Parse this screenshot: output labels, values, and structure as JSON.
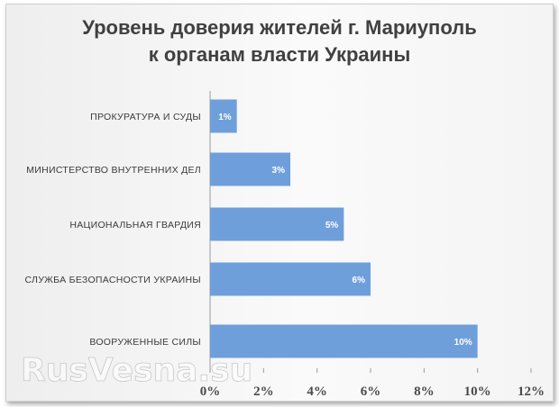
{
  "chart_data": {
    "type": "bar",
    "orientation": "horizontal",
    "title": [
      "Уровень доверия жителей г. Мариуполь",
      "к органам власти Украины"
    ],
    "categories": [
      "ПРОКУРАТУРА И СУДЫ",
      "МИНИСТЕРСТВО ВНУТРЕННИХ ДЕЛ",
      "НАЦИОНАЛЬНАЯ ГВАРДИЯ",
      "СЛУЖБА БЕЗОПАСНОСТИ УКРАИНЫ",
      "ВООРУЖЕННЫЕ СИЛЫ"
    ],
    "values": [
      1,
      3,
      5,
      6,
      10
    ],
    "data_labels": [
      "1%",
      "3%",
      "5%",
      "6%",
      "10%"
    ],
    "xticks": [
      "0%",
      "2%",
      "4%",
      "6%",
      "8%",
      "10%",
      "12%"
    ],
    "xlim": [
      0,
      12
    ],
    "grid": false,
    "bar_color": "#6f9fdb",
    "watermark": "RusVesna.su"
  }
}
